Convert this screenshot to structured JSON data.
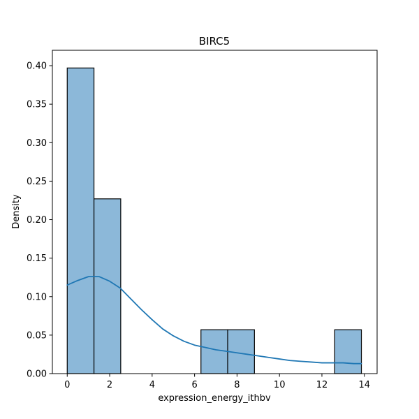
{
  "chart_data": {
    "type": "bar",
    "title": "BIRC5",
    "xlabel": "expression_energy_ithbv",
    "ylabel": "Density",
    "xlim": [
      -0.7,
      14.6
    ],
    "ylim": [
      0,
      0.42
    ],
    "xticks": [
      0,
      2,
      4,
      6,
      8,
      10,
      12,
      14
    ],
    "xtick_labels": [
      "0",
      "2",
      "4",
      "6",
      "8",
      "10",
      "12",
      "14"
    ],
    "yticks": [
      0,
      0.05,
      0.1,
      0.15,
      0.2,
      0.25,
      0.3,
      0.35,
      0.4
    ],
    "ytick_labels": [
      "0.00",
      "0.05",
      "0.10",
      "0.15",
      "0.20",
      "0.25",
      "0.30",
      "0.35",
      "0.40"
    ],
    "bin_edges": [
      0.0,
      1.26,
      2.52,
      3.78,
      5.04,
      6.3,
      7.56,
      8.82,
      10.08,
      11.34,
      12.6,
      13.86
    ],
    "density": [
      0.397,
      0.227,
      0,
      0,
      0,
      0.057,
      0.057,
      0,
      0,
      0,
      0.057
    ],
    "kde": {
      "x": [
        0,
        0.5,
        1.0,
        1.5,
        2.0,
        2.5,
        3.0,
        3.5,
        4.0,
        4.5,
        5.0,
        5.5,
        6.0,
        6.5,
        7.0,
        7.5,
        8.0,
        8.5,
        9.0,
        9.5,
        10.0,
        10.5,
        11.0,
        11.5,
        12.0,
        12.5,
        13.0,
        13.5,
        13.86
      ],
      "y": [
        0.115,
        0.121,
        0.126,
        0.126,
        0.12,
        0.111,
        0.097,
        0.083,
        0.07,
        0.058,
        0.049,
        0.042,
        0.037,
        0.034,
        0.031,
        0.029,
        0.027,
        0.025,
        0.023,
        0.021,
        0.019,
        0.017,
        0.016,
        0.015,
        0.014,
        0.014,
        0.014,
        0.013,
        0.013
      ]
    },
    "bar_fill": "#8cb8d9",
    "bar_edge": "#000000",
    "line_color": "#1f77b4",
    "grid": false,
    "legend": "none"
  }
}
